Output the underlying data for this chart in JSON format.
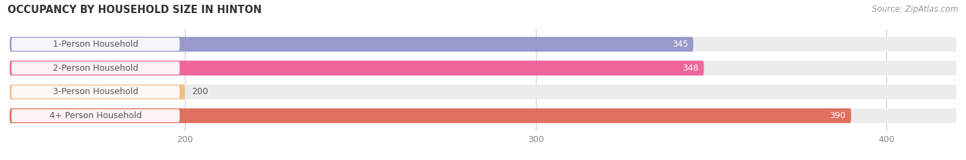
{
  "title": "OCCUPANCY BY HOUSEHOLD SIZE IN HINTON",
  "source": "Source: ZipAtlas.com",
  "categories": [
    "1-Person Household",
    "2-Person Household",
    "3-Person Household",
    "4+ Person Household"
  ],
  "values": [
    345,
    348,
    200,
    390
  ],
  "bar_colors": [
    "#9999cc",
    "#ee6699",
    "#f0c080",
    "#e07060"
  ],
  "bar_bg_color": "#ececec",
  "value_label_color": "#ffffff",
  "category_label_color": "#555555",
  "xlim_min": 150,
  "xlim_max": 420,
  "xticks": [
    200,
    300,
    400
  ],
  "title_fontsize": 10.5,
  "source_fontsize": 8.5,
  "label_fontsize": 9,
  "value_fontsize": 9,
  "background_color": "#ffffff",
  "bar_height": 0.62,
  "rounding": 0.31
}
